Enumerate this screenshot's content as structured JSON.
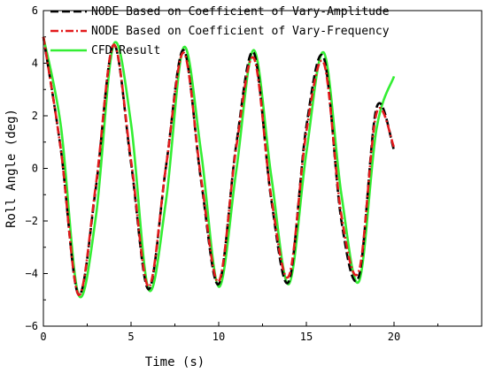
{
  "chart_data": {
    "type": "line",
    "title": "",
    "xlabel": "Time (s)",
    "ylabel": "Roll Angle (deg)",
    "xlim": [
      0,
      25
    ],
    "ylim": [
      -6,
      6
    ],
    "xticks": [
      0,
      5,
      10,
      15,
      20
    ],
    "yticks": [
      -6,
      -4,
      -2,
      0,
      2,
      4,
      6
    ],
    "xtick_labels": [
      "0",
      "5",
      "10",
      "15",
      "20"
    ],
    "ytick_labels": [
      "−6",
      "−4",
      "−2",
      "0",
      "2",
      "4",
      "6"
    ],
    "grid": false,
    "legend_position": "top-left",
    "series": [
      {
        "name": "NODE Based on Coefficient of Vary-Amplitude",
        "color": "#000000",
        "style": "dash",
        "x": [
          0,
          1,
          2,
          3,
          4,
          5,
          6,
          7,
          8,
          9,
          10,
          11,
          12,
          13,
          14,
          15,
          16,
          17,
          18,
          19,
          20
        ],
        "y": [
          5.0,
          0.7,
          -4.8,
          -0.7,
          4.7,
          0.2,
          -4.6,
          0.1,
          4.5,
          -0.5,
          -4.4,
          0.9,
          4.4,
          -1.2,
          -4.3,
          1.6,
          4.2,
          -2.0,
          -4.1,
          2.3,
          0.7
        ]
      },
      {
        "name": "NODE Based on Coefficient of Vary-Frequency",
        "color": "#e31a1c",
        "style": "dashdot",
        "x": [
          0,
          1,
          2,
          3,
          4,
          5,
          6,
          7,
          8,
          9,
          10,
          11,
          12,
          13,
          14,
          15,
          16,
          17,
          18,
          19,
          20
        ],
        "y": [
          5.0,
          0.7,
          -4.8,
          -0.6,
          4.7,
          0.3,
          -4.5,
          0.1,
          4.4,
          -0.4,
          -4.3,
          0.8,
          4.2,
          -1.1,
          -4.1,
          1.4,
          4.0,
          -1.8,
          -3.9,
          2.1,
          0.8
        ]
      },
      {
        "name": "CFD Result",
        "color": "#33ee33",
        "style": "solid",
        "x": [
          0,
          1,
          2,
          3,
          4,
          5,
          6,
          7,
          8,
          9,
          10,
          11,
          12,
          13,
          14,
          15,
          16,
          17,
          18,
          19,
          20
        ],
        "y": [
          5.0,
          1.6,
          -4.8,
          -1.8,
          4.7,
          1.7,
          -4.6,
          -1.2,
          4.6,
          0.6,
          -4.5,
          -0.1,
          4.5,
          -0.3,
          -4.4,
          0.6,
          4.4,
          -1.0,
          -4.3,
          1.5,
          3.5
        ]
      }
    ]
  }
}
